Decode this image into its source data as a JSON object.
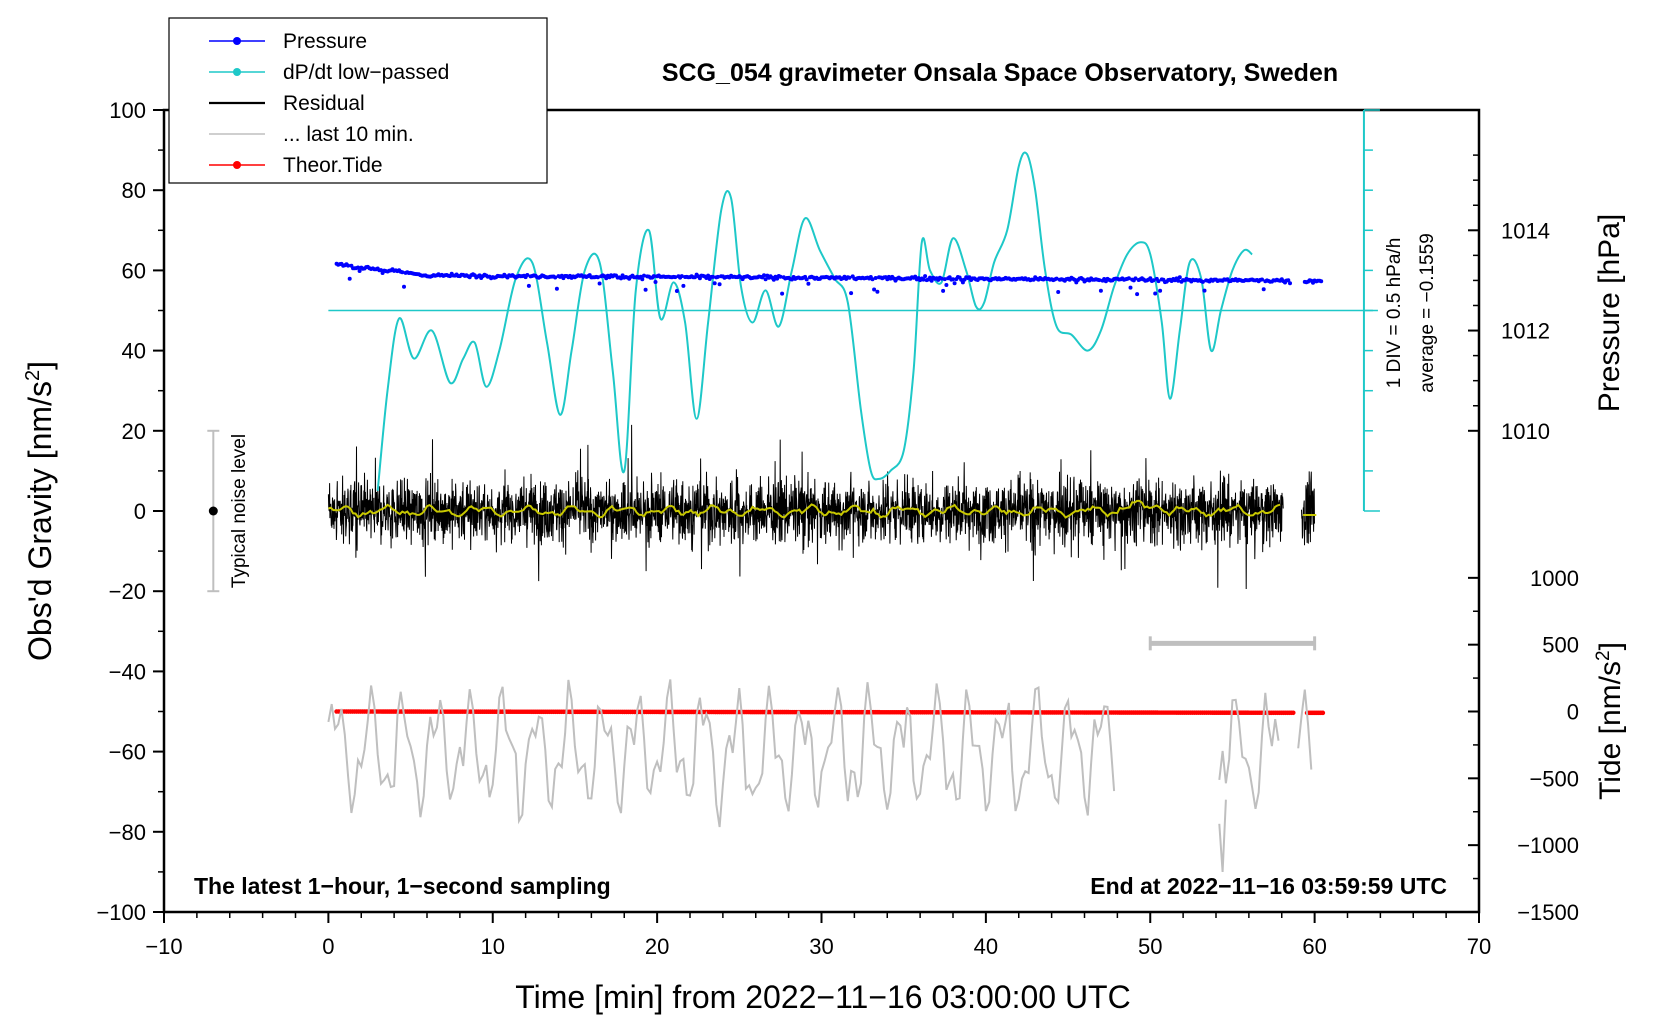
{
  "chart_data": {
    "type": "line",
    "title": "SCG_054 gravimeter Onsala Space Observatory, Sweden",
    "xlabel": "Time [min] from 2022−11−16 03:00:00 UTC",
    "ylabel": "Obs'd Gravity [nm/s",
    "ylabel_sup": "2",
    "ylabel_end": "]",
    "xlim": [
      -10,
      70
    ],
    "ylim": [
      -100,
      100
    ],
    "x_ticks": [
      -10,
      0,
      10,
      20,
      30,
      40,
      50,
      60,
      70
    ],
    "x_tick_labels": [
      "−10",
      "0",
      "10",
      "20",
      "30",
      "40",
      "50",
      "60",
      "70"
    ],
    "y_ticks": [
      100,
      80,
      60,
      40,
      20,
      0,
      -20,
      -40,
      -60,
      -80,
      -100
    ],
    "y_tick_labels": [
      "100",
      "80",
      "60",
      "40",
      "20",
      "0",
      "−20",
      "−40",
      "−60",
      "−80",
      "−100"
    ],
    "pressure_axis": {
      "label": "Pressure [hPa]",
      "ticks": [
        1010,
        1012,
        1014
      ],
      "tick_labels": [
        "1010",
        "1012",
        "1014"
      ],
      "y_at_1010": 20,
      "y_per_hPa": 12.5
    },
    "tide_axis": {
      "label": "Tide [nm/s",
      "label_sup": "2",
      "label_end": "]",
      "ticks": [
        1000,
        500,
        0,
        -500,
        -1000,
        -1500
      ],
      "tick_labels": [
        "1000",
        "500",
        "0",
        "−500",
        "−1000",
        "−1500"
      ],
      "y_at_0": -50,
      "y_per_unit": 0.03333
    },
    "dpdt_scale": {
      "div_text": "1 DIV = 0.5 hPa/h",
      "average_text": "average = −0.1559",
      "x": 63,
      "baseline_y": 50,
      "range": [
        0,
        100
      ],
      "divisions": 10
    },
    "noise_bar": {
      "label": "Typical noise level",
      "x": -7,
      "center": 0,
      "half": 20
    },
    "last10_bar": {
      "x": [
        50,
        60
      ],
      "y": -33
    },
    "series": [
      {
        "name": "Pressure",
        "color": "#0000ff",
        "style": "dots",
        "hPa": 1013.0,
        "start_hPa": 1013.35,
        "x": [
          0.5,
          60.5
        ]
      },
      {
        "name": "dP/dt low−passed",
        "color": "#1ec8c8",
        "style": "line",
        "x": [
          3,
          3.6,
          4.3,
          5.2,
          6.3,
          7.4,
          8.2,
          8.9,
          9.6,
          10.4,
          11.4,
          12.4,
          13.3,
          14.1,
          14.8,
          15.6,
          16.5,
          17.3,
          18.0,
          18.7,
          19.5,
          20.2,
          21.0,
          21.7,
          22.4,
          23.1,
          23.9,
          24.5,
          25.1,
          25.8,
          26.6,
          27.4,
          28.2,
          29.0,
          29.9,
          30.8,
          31.6,
          32.4,
          33.0,
          33.5,
          34.2,
          35.0,
          35.6,
          36.1,
          36.6,
          37.3,
          38.0,
          38.8,
          39.4,
          39.9,
          40.5,
          41.3,
          42.0,
          42.5,
          43.0,
          43.6,
          44.3,
          45.2,
          46.2,
          47.0,
          47.8,
          48.6,
          49.4,
          50.0,
          50.7,
          51.2,
          51.8,
          52.4,
          53.1,
          53.7,
          54.3,
          55.0,
          55.7,
          56.2
        ],
        "y": [
          5,
          30,
          48,
          38,
          45,
          32,
          38,
          42,
          31,
          40,
          58,
          62,
          42,
          24,
          40,
          60,
          62,
          35,
          10,
          55,
          70,
          48,
          57,
          47,
          23,
          47,
          75,
          78,
          56,
          47,
          55,
          46,
          60,
          73,
          65,
          58,
          52,
          25,
          10,
          8,
          10,
          15,
          35,
          67,
          60,
          57,
          68,
          60,
          51,
          52,
          62,
          70,
          86,
          89,
          80,
          60,
          46,
          44,
          40,
          45,
          56,
          64,
          67,
          64,
          47,
          28,
          45,
          62,
          58,
          40,
          50,
          60,
          65,
          64
        ]
      },
      {
        "name": "Residual",
        "color": "#000000",
        "style": "line",
        "amplitude": 22,
        "x": [
          0,
          60
        ]
      },
      {
        "name": "... last 10 min.",
        "color": "#bfbfbf",
        "style": "line",
        "x": [
          0,
          60
        ]
      },
      {
        "name": "Theor.Tide",
        "color": "#ff0000",
        "style": "dots",
        "tide_start": 0,
        "tide_end": -10,
        "x": [
          0.5,
          60.5
        ]
      }
    ],
    "smoothed_residual": {
      "color": "#c8c800"
    },
    "footer_left": "The latest 1−hour, 1−second sampling",
    "footer_right": "End at 2022−11−16 03:59:59 UTC",
    "legend_position": "top-left"
  }
}
